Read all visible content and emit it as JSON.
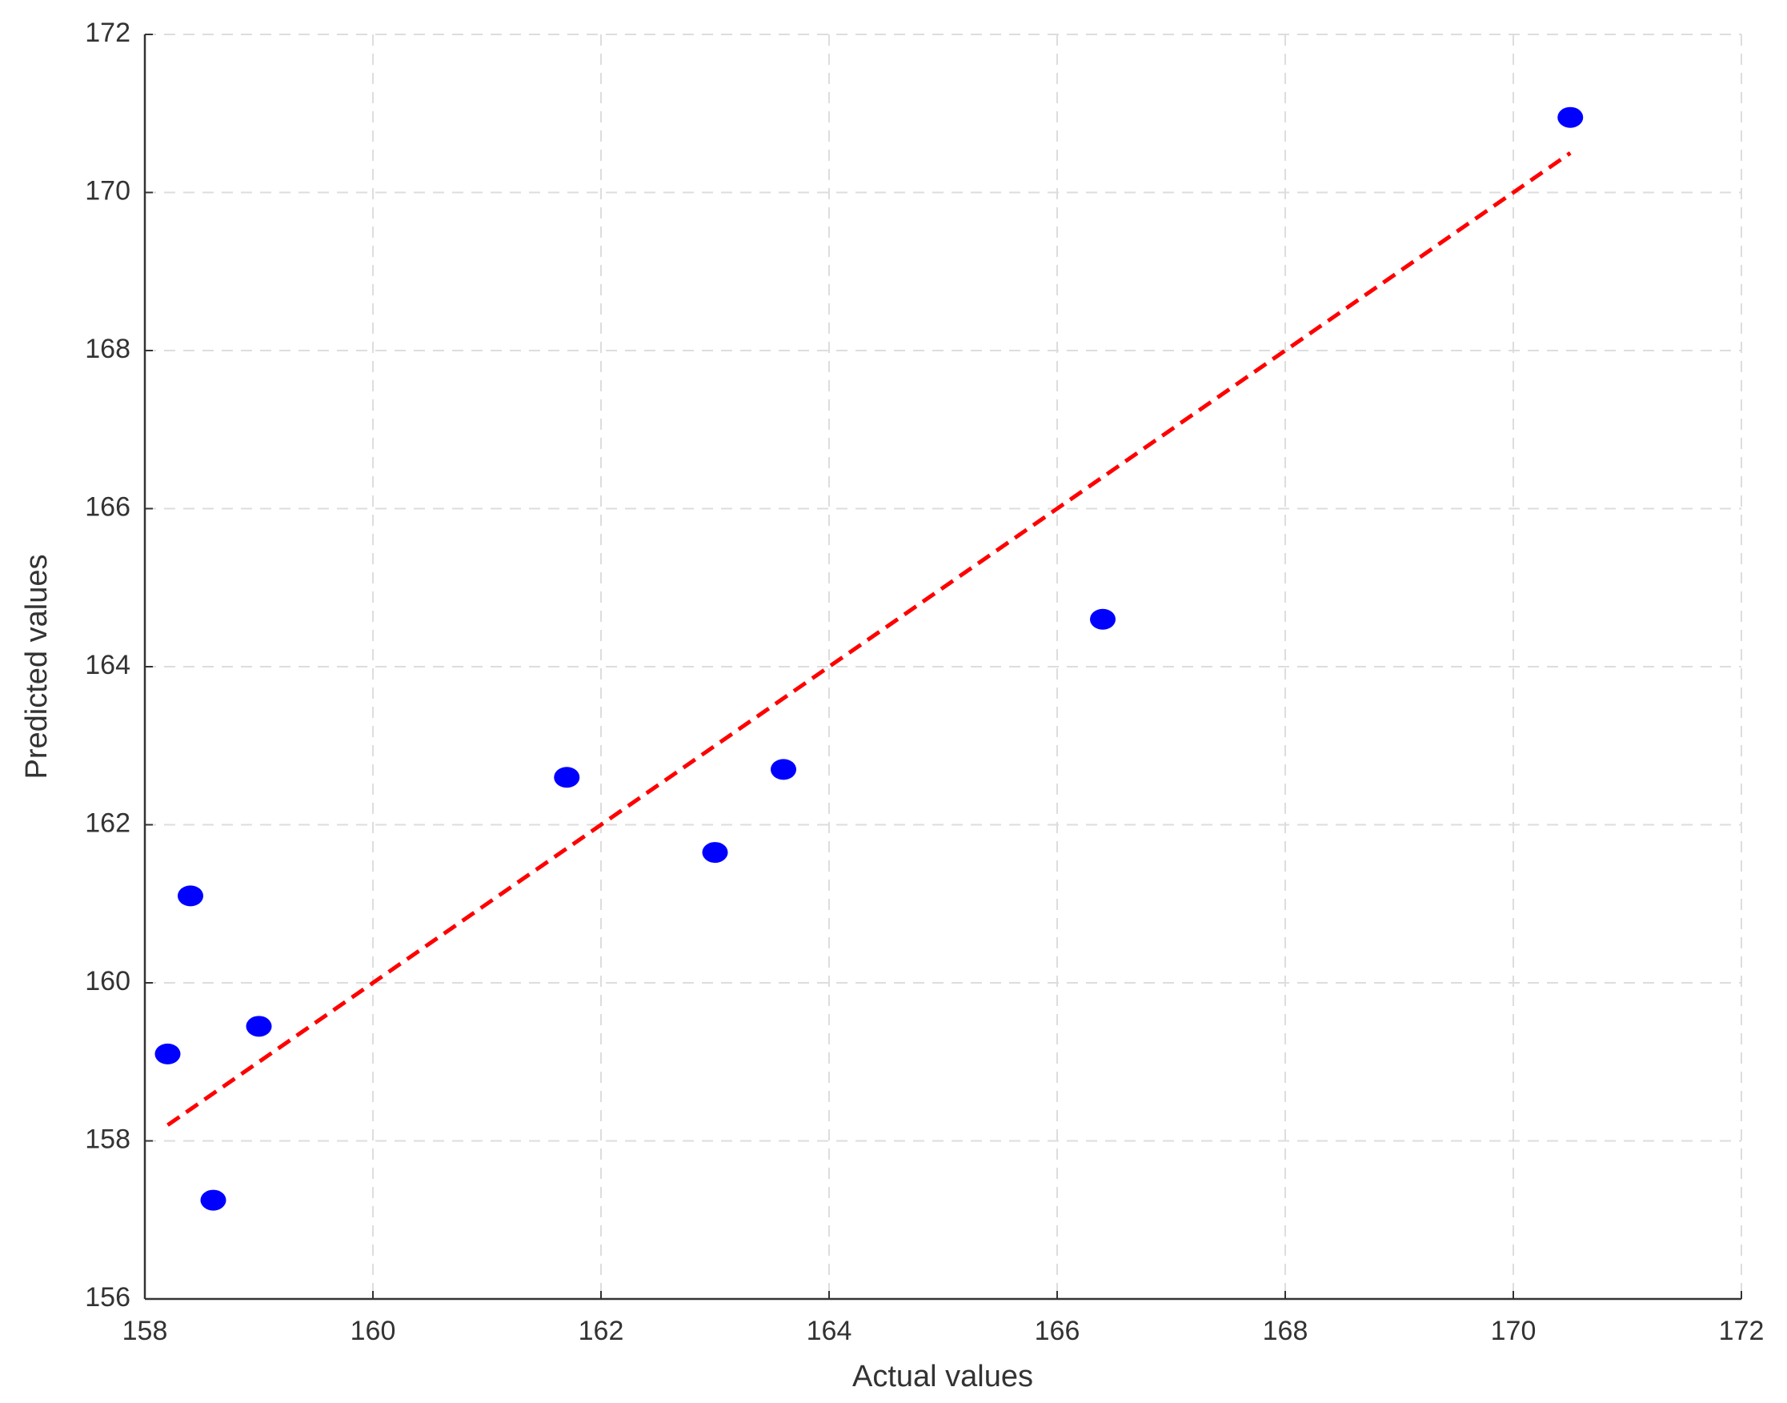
{
  "chart_data": {
    "type": "scatter",
    "x_label": "Actual values",
    "y_label": "Predicted values",
    "x": [
      158.2,
      158.4,
      158.6,
      159.0,
      161.7,
      163.0,
      163.6,
      166.4,
      170.5
    ],
    "values": [
      159.1,
      161.1,
      157.25,
      159.45,
      162.6,
      161.65,
      162.7,
      164.6,
      170.95
    ],
    "color": "#0000ff",
    "fit_line": {
      "x": [
        158.2,
        170.5
      ],
      "y": [
        158.2,
        170.5
      ],
      "color": "#ff0000",
      "dashed": true
    },
    "xlim": [
      158,
      172
    ],
    "xticks": [
      158,
      160,
      162,
      164,
      166,
      168,
      170,
      172
    ],
    "ylim": [
      156,
      172
    ],
    "yticks": [
      156,
      158,
      160,
      162,
      164,
      166,
      168,
      170,
      172
    ],
    "grid": true
  }
}
